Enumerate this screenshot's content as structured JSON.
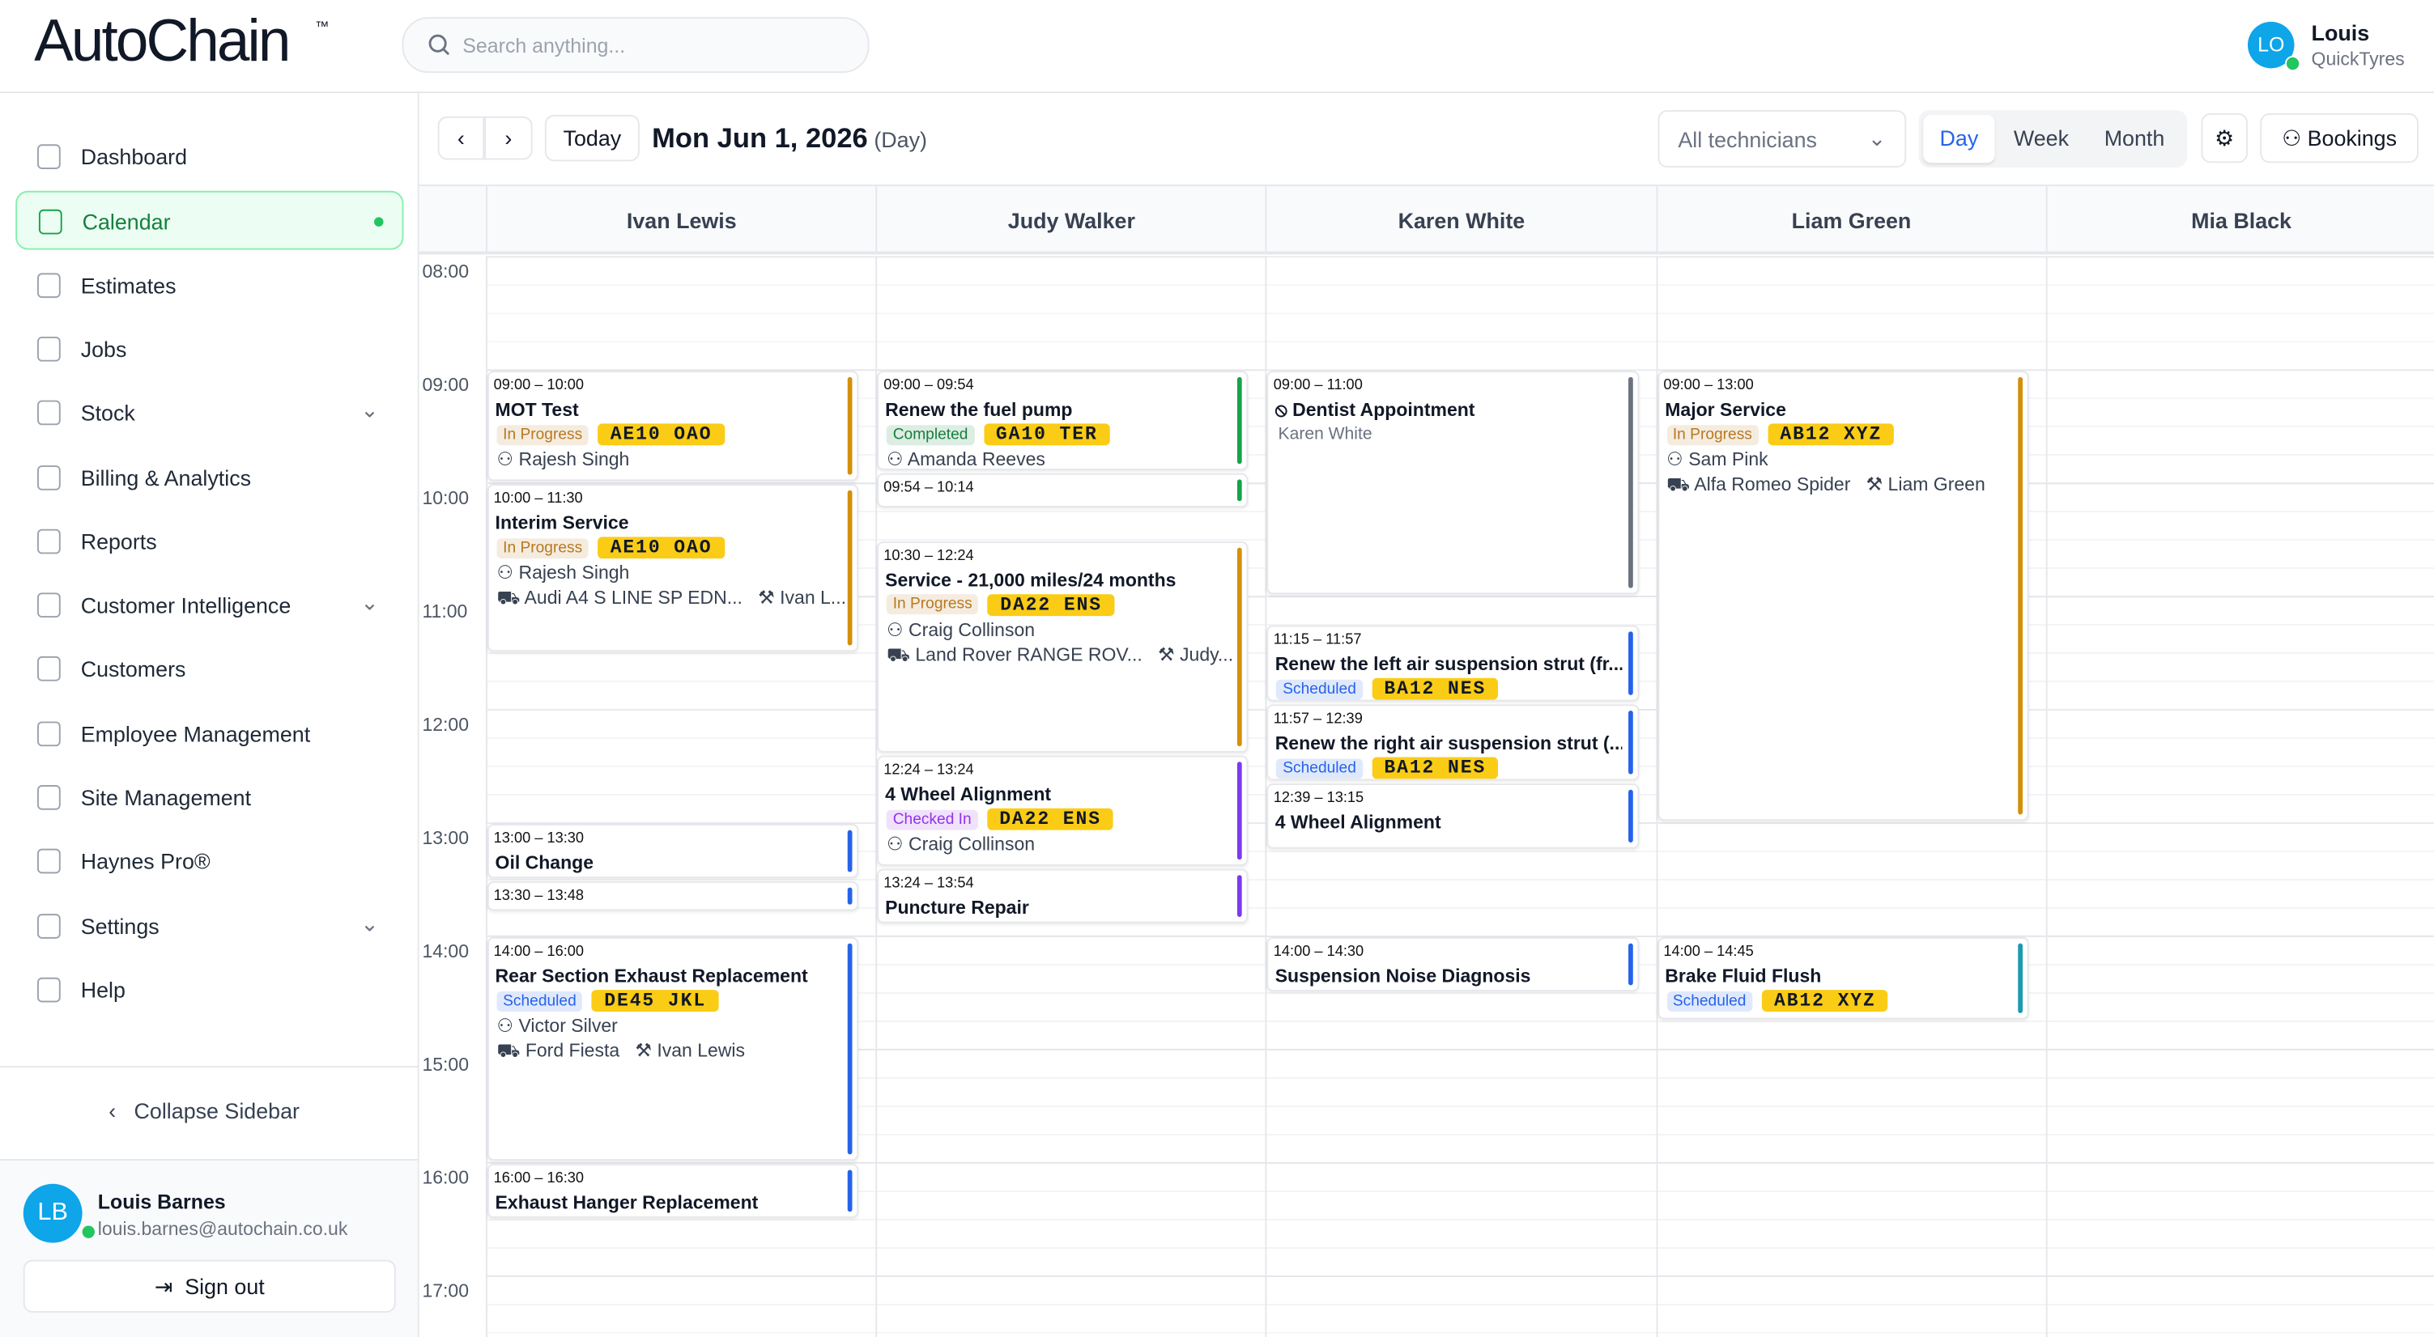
{
  "header": {
    "brand": "AutoChain",
    "brand_mark": "™",
    "search_placeholder": "Search anything...",
    "user": {
      "initials": "LO",
      "name": "Louis",
      "company": "QuickTyres"
    }
  },
  "sidebar": {
    "nav": [
      {
        "label": "Dashboard"
      },
      {
        "label": "Calendar",
        "active": true
      },
      {
        "label": "Estimates"
      },
      {
        "label": "Jobs"
      },
      {
        "label": "Stock",
        "expandable": true
      },
      {
        "label": "Billing & Analytics"
      },
      {
        "label": "Reports"
      },
      {
        "label": "Customer Intelligence",
        "expandable": true
      },
      {
        "label": "Customers"
      },
      {
        "label": "Employee Management"
      },
      {
        "label": "Site Management"
      },
      {
        "label": "Haynes Pro®"
      },
      {
        "label": "Settings",
        "expandable": true
      },
      {
        "label": "Help"
      }
    ],
    "collapse": "Collapse Sidebar",
    "user": {
      "initials": "LB",
      "name": "Louis Barnes",
      "email": "louis.barnes@autochain.co.uk"
    },
    "sign_out": "Sign out"
  },
  "toolbar": {
    "today": "Today",
    "date": "Mon Jun 1, 2026",
    "view_note": "(Day)",
    "technician_filter": "All technicians",
    "views": [
      {
        "label": "Day",
        "active": true
      },
      {
        "label": "Week"
      },
      {
        "label": "Month"
      }
    ],
    "bookings": "Bookings"
  },
  "calendar": {
    "times": [
      "08:00",
      "09:00",
      "10:00",
      "11:00",
      "12:00",
      "13:00",
      "14:00",
      "15:00",
      "16:00",
      "17:00"
    ],
    "technicians": [
      {
        "name": "Ivan Lewis",
        "appointments": [
          {
            "time": "09:00 – 10:00",
            "title": "MOT Test",
            "status": {
              "label": "In Progress",
              "color": "#b7791f"
            },
            "plate": "AE10 OAO",
            "customer": "Rajesh Singh",
            "color": "#d4900a"
          },
          {
            "time": "10:00 – 11:30",
            "title": "Interim Service",
            "status": {
              "label": "In Progress",
              "color": "#b7791f"
            },
            "plate": "AE10 OAO",
            "customer": "Rajesh Singh",
            "vehicle": "Audi A4 S LINE SP EDN...",
            "tech": "Ivan L...",
            "color": "#d4900a"
          },
          {
            "time": "13:00 – 13:30",
            "title": "Oil Change",
            "color": "#2563eb"
          },
          {
            "time": "13:30 – 13:48",
            "color": "#2563eb"
          },
          {
            "time": "14:00 – 16:00",
            "title": "Rear Section Exhaust Replacement",
            "status": {
              "label": "Scheduled",
              "color": "#2563eb"
            },
            "plate": "DE45 JKL",
            "customer": "Victor Silver",
            "vehicle": "Ford Fiesta",
            "tech": "Ivan Lewis",
            "color": "#2563eb"
          },
          {
            "time": "16:00 – 16:30",
            "title": "Exhaust Hanger Replacement",
            "color": "#2563eb"
          }
        ]
      },
      {
        "name": "Judy Walker",
        "appointments": [
          {
            "time": "09:00 – 09:54",
            "title": "Renew the fuel pump",
            "status": {
              "label": "Completed",
              "color": "#15803d"
            },
            "plate": "GA10 TER",
            "customer": "Amanda Reeves",
            "color": "#16a34a"
          },
          {
            "time": "09:54 – 10:14",
            "color": "#16a34a"
          },
          {
            "time": "10:30 – 12:24",
            "title": "Service - 21,000 miles/24 months",
            "status": {
              "label": "In Progress",
              "color": "#b7791f"
            },
            "plate": "DA22 ENS",
            "customer": "Craig Collinson",
            "vehicle": "Land Rover RANGE ROV...",
            "tech": "Judy...",
            "color": "#d4900a"
          },
          {
            "time": "12:24 – 13:24",
            "title": "4 Wheel Alignment",
            "status": {
              "label": "Checked In",
              "color": "#9333ea"
            },
            "plate": "DA22 ENS",
            "customer": "Craig Collinson",
            "color": "#7c3aed"
          },
          {
            "time": "13:24 – 13:54",
            "title": "Puncture Repair",
            "color": "#7c3aed"
          }
        ]
      },
      {
        "name": "Karen White",
        "appointments": [
          {
            "time": "09:00 – 11:00",
            "title": "Dentist Appointment",
            "customer": "Karen White",
            "blocked": true,
            "color": "#6b7280"
          },
          {
            "time": "11:15 – 11:57",
            "title": "Renew the left air suspension strut (fr...",
            "status": {
              "label": "Scheduled",
              "color": "#2563eb"
            },
            "plate": "BA12 NES",
            "color": "#2563eb"
          },
          {
            "time": "11:57 – 12:39",
            "title": "Renew the right air suspension strut (...",
            "status": {
              "label": "Scheduled",
              "color": "#2563eb"
            },
            "plate": "BA12 NES",
            "color": "#2563eb"
          },
          {
            "time": "12:39 – 13:15",
            "title": "4 Wheel Alignment",
            "color": "#2563eb"
          },
          {
            "time": "14:00 – 14:30",
            "title": "Suspension Noise Diagnosis",
            "color": "#2563eb"
          }
        ]
      },
      {
        "name": "Liam Green",
        "appointments": [
          {
            "time": "09:00 – 13:00",
            "title": "Major Service",
            "status": {
              "label": "In Progress",
              "color": "#b7791f"
            },
            "plate": "AB12 XYZ",
            "customer": "Sam Pink",
            "vehicle": "Alfa Romeo Spider",
            "tech": "Liam Green",
            "color": "#d4900a"
          },
          {
            "time": "14:00 – 14:45",
            "title": "Brake Fluid Flush",
            "status": {
              "label": "Scheduled",
              "color": "#2563eb"
            },
            "plate": "AB12 XYZ",
            "color": "#1a9bb0"
          }
        ]
      },
      {
        "name": "Mia Black",
        "appointments": []
      }
    ]
  }
}
